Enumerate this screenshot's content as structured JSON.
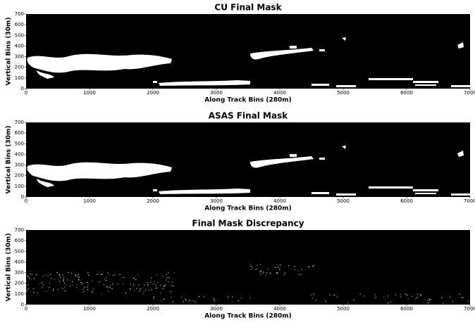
{
  "chart_data": [
    {
      "type": "image",
      "title": "CU Final Mask",
      "xlabel": "Along Track Bins (280m)",
      "ylabel": "Vertical Bins (30m)",
      "xlim": [
        0,
        7000
      ],
      "ylim": [
        0,
        700
      ],
      "xticks": [
        0,
        1000,
        2000,
        3000,
        4000,
        5000,
        6000,
        7000
      ],
      "yticks": [
        0,
        100,
        200,
        300,
        400,
        500,
        600,
        700
      ]
    },
    {
      "type": "image",
      "title": "ASAS Final Mask",
      "xlabel": "Along Track Bins (280m)",
      "ylabel": "Vertical Bins (30m)",
      "xlim": [
        0,
        7000
      ],
      "ylim": [
        0,
        700
      ],
      "xticks": [
        0,
        1000,
        2000,
        3000,
        4000,
        5000,
        6000,
        7000
      ],
      "yticks": [
        0,
        100,
        200,
        300,
        400,
        500,
        600,
        700
      ]
    },
    {
      "type": "image",
      "title": "Final Mask Discrepancy",
      "xlabel": "Along Track Bins (280m)",
      "ylabel": "Vertical Bins (30m)",
      "xlim": [
        0,
        7000
      ],
      "ylim": [
        0,
        700
      ],
      "xticks": [
        0,
        1000,
        2000,
        3000,
        4000,
        5000,
        6000,
        7000
      ],
      "yticks": [
        0,
        100,
        200,
        300,
        400,
        500,
        600,
        700
      ]
    }
  ]
}
